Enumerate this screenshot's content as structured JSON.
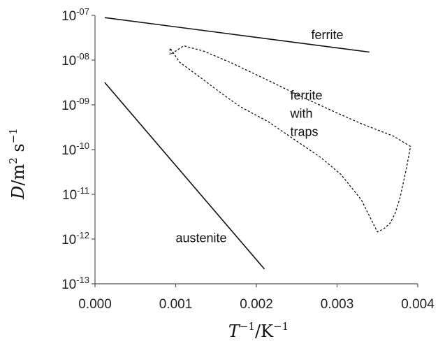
{
  "chart_data": {
    "type": "line",
    "title": "",
    "xlabel": {
      "main": "T",
      "main_exp": "−1",
      "sep": "/K",
      "sep_exp": "−1"
    },
    "ylabel": {
      "main": "D",
      "sep": "/m",
      "sep_exp": "2",
      "unit2": " s",
      "unit2_exp": "−1"
    },
    "xlim": [
      0.0,
      0.004
    ],
    "ylim_log10": [
      -13,
      -7
    ],
    "yscale": "log",
    "grid": false,
    "x_ticks": [
      0.0,
      0.001,
      0.002,
      0.003,
      0.004
    ],
    "x_tick_labels": [
      "0.000",
      "0.001",
      "0.002",
      "0.003",
      "0.004"
    ],
    "y_ticks_log10": [
      -7,
      -8,
      -9,
      -10,
      -11,
      -12,
      -13
    ],
    "y_tick_labels": [
      {
        "base": "10",
        "exp": "-07"
      },
      {
        "base": "10",
        "exp": "-08"
      },
      {
        "base": "10",
        "exp": "-09"
      },
      {
        "base": "10",
        "exp": "-10"
      },
      {
        "base": "10",
        "exp": "-11"
      },
      {
        "base": "10",
        "exp": "-12"
      },
      {
        "base": "10",
        "exp": "-13"
      }
    ],
    "series": [
      {
        "name": "ferrite",
        "style": "solid",
        "color": "#111111",
        "x": [
          0.00012,
          0.0034
        ],
        "y_log10": [
          -7.05,
          -7.82
        ]
      },
      {
        "name": "austenite",
        "style": "solid",
        "color": "#111111",
        "x": [
          0.00012,
          0.0021
        ],
        "y_log10": [
          -8.5,
          -12.67
        ]
      },
      {
        "name": "ferrite with traps",
        "style": "dashed",
        "closed": true,
        "color": "#111111",
        "x": [
          0.00093,
          0.00093,
          0.00105,
          0.0013,
          0.00155,
          0.0018,
          0.00215,
          0.00245,
          0.0028,
          0.00305,
          0.0033,
          0.0035,
          0.00358,
          0.00366,
          0.00372,
          0.00378,
          0.00382,
          0.00386,
          0.00391,
          0.0037,
          0.0033,
          0.00295,
          0.00255,
          0.0022,
          0.0017,
          0.00135,
          0.0011
        ],
        "y_log10": [
          -7.88,
          -7.73,
          -8.05,
          -8.38,
          -8.72,
          -9.04,
          -9.38,
          -9.75,
          -10.18,
          -10.56,
          -11.12,
          -11.84,
          -11.77,
          -11.64,
          -11.42,
          -11.08,
          -10.75,
          -10.42,
          -9.93,
          -9.7,
          -9.42,
          -9.14,
          -8.81,
          -8.5,
          -8.07,
          -7.8,
          -7.68
        ]
      }
    ],
    "series_labels": [
      {
        "lines": [
          "ferrite"
        ],
        "x": 0.00268,
        "y_log10": -7.53
      },
      {
        "lines": [
          "ferrite",
          "with",
          "traps"
        ],
        "x": 0.00242,
        "y_log10": -8.88
      },
      {
        "lines": [
          "austenite"
        ],
        "x": 0.001,
        "y_log10": -12.07
      }
    ]
  }
}
